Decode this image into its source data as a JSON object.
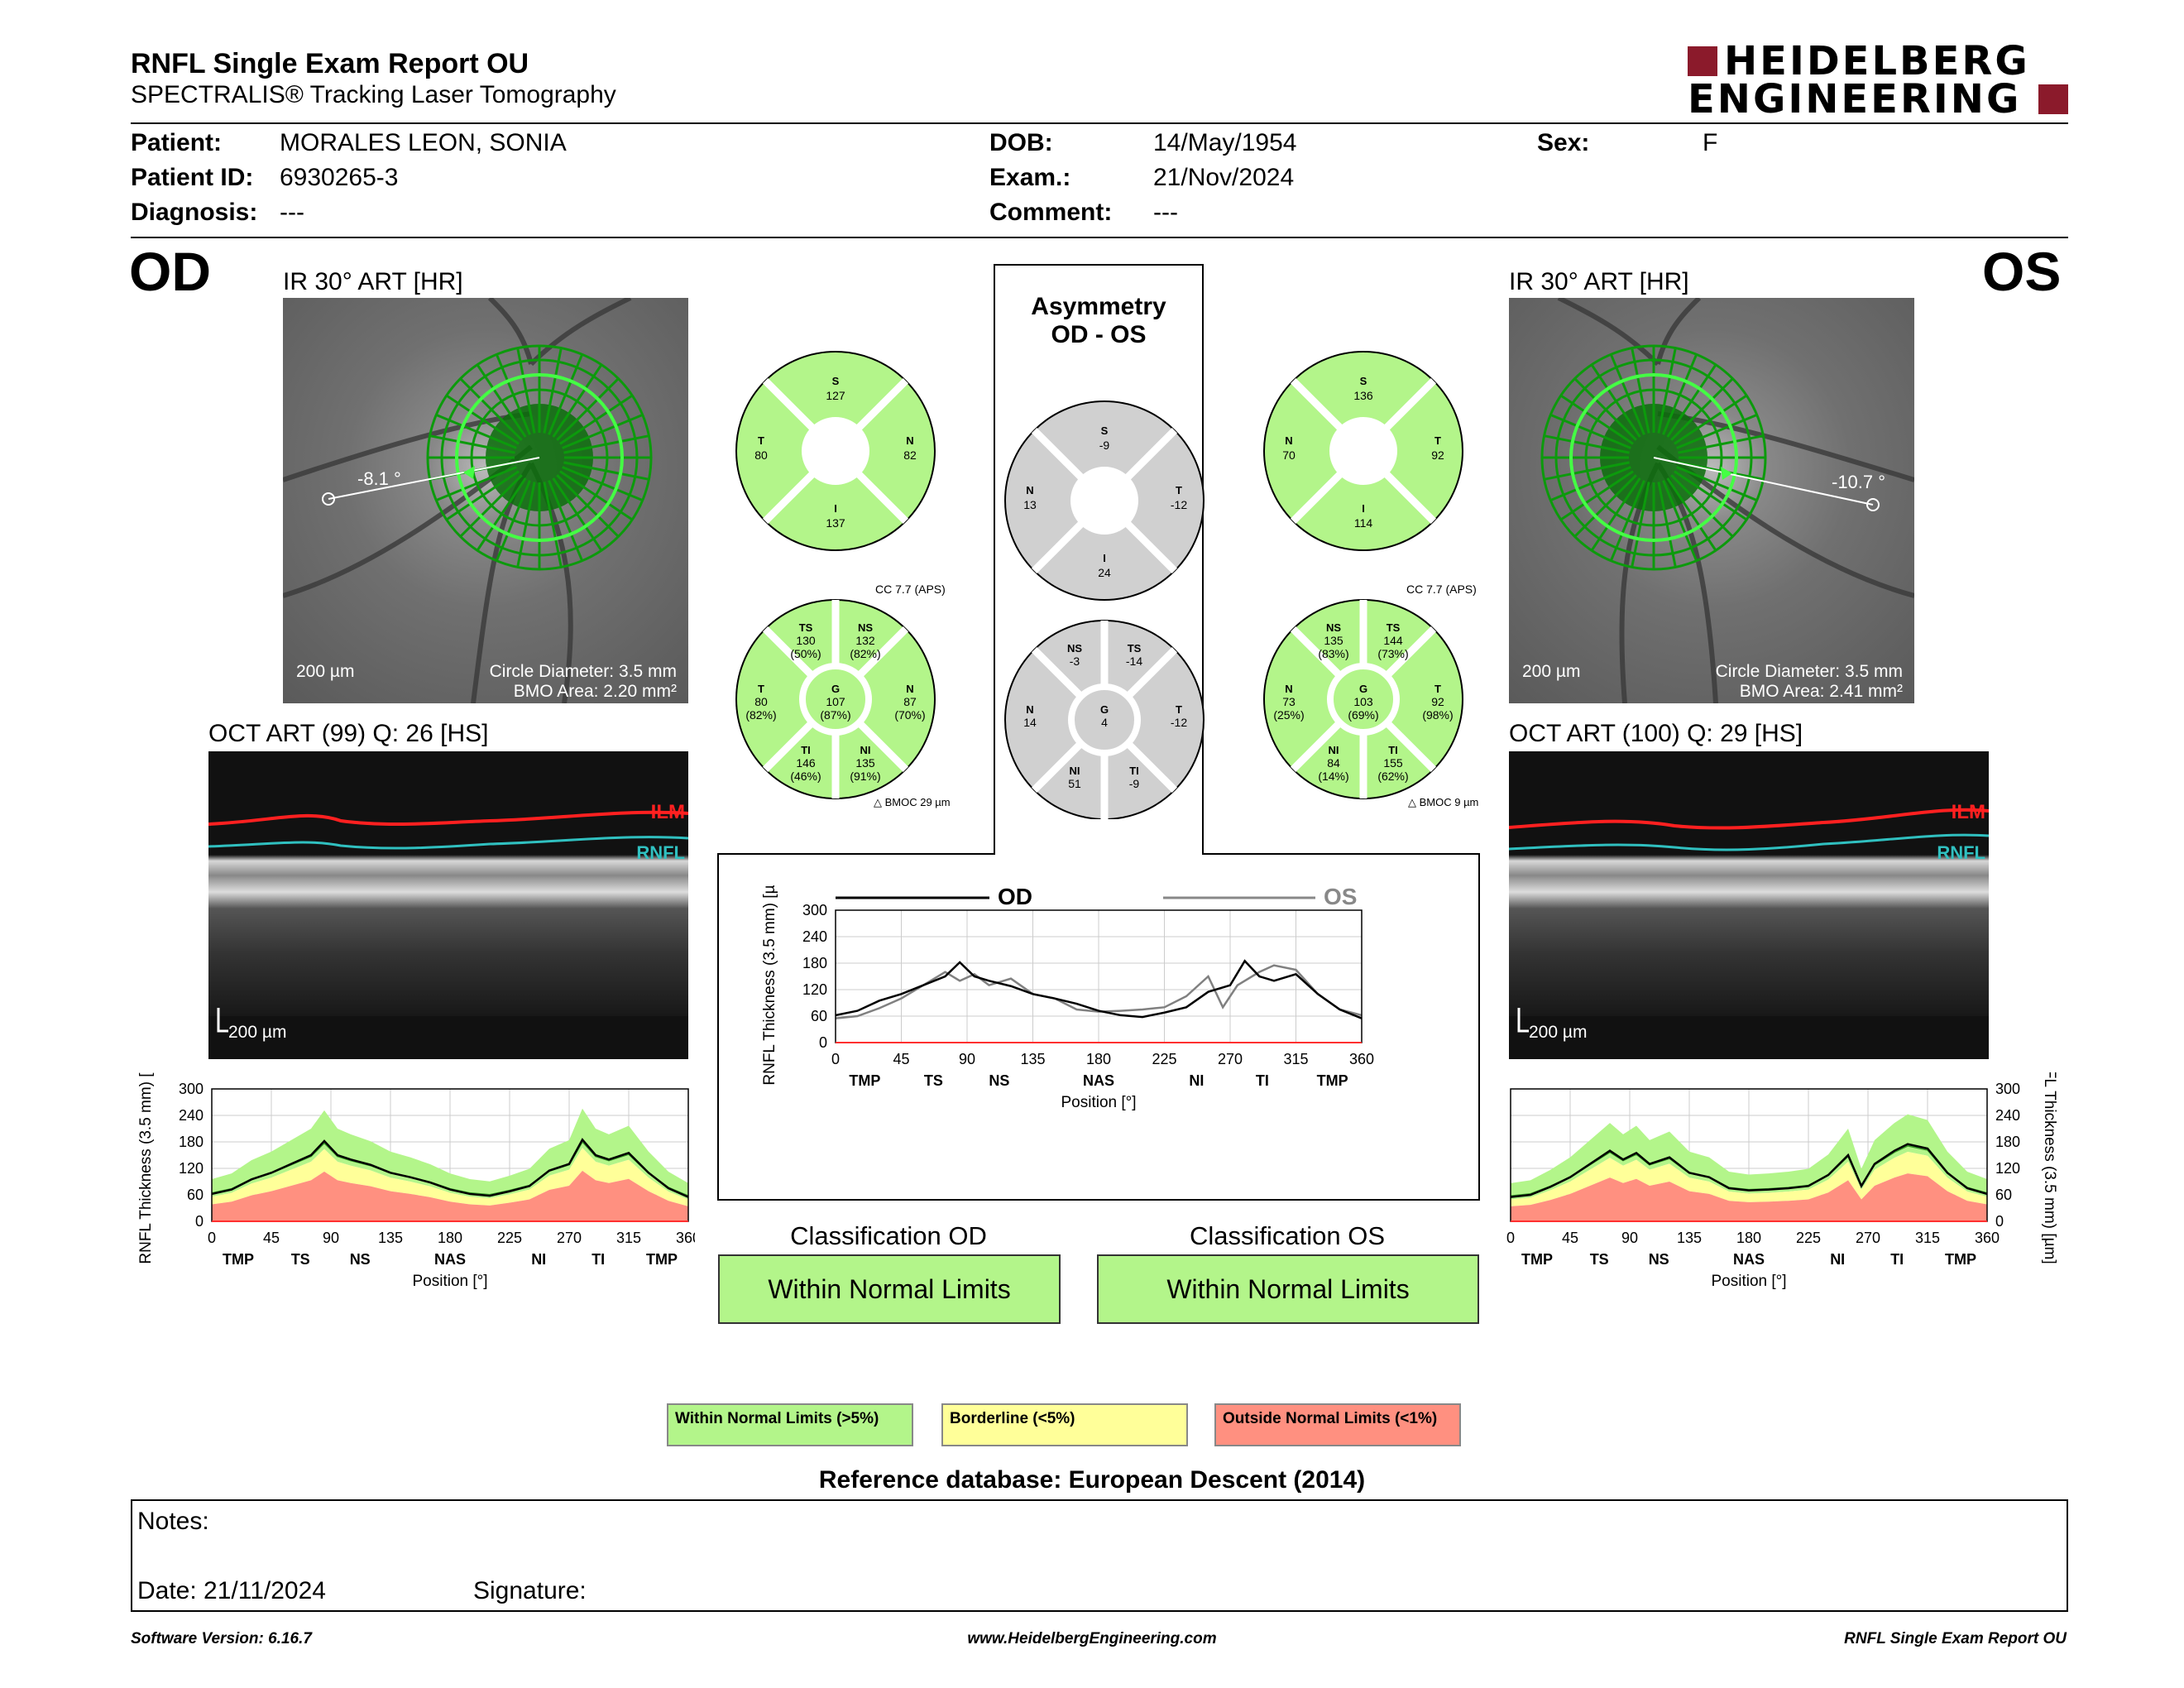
{
  "header": {
    "title": "RNFL Single Exam Report OU",
    "subtitle": "SPECTRALIS® Tracking Laser Tomography",
    "logo_line1": "HEIDELBERG",
    "logo_line2": "ENGINEERING"
  },
  "patient": {
    "patient_label": "Patient:",
    "patient": "MORALES LEON, SONIA",
    "id_label": "Patient ID:",
    "id": "6930265-3",
    "diag_label": "Diagnosis:",
    "diagnosis": "---",
    "dob_label": "DOB:",
    "dob": "14/May/1954",
    "exam_label": "Exam.:",
    "exam": "21/Nov/2024",
    "comment_label": "Comment:",
    "comment": "---",
    "sex_label": "Sex:",
    "sex": "F"
  },
  "od": {
    "eye": "OD",
    "ir_title": "IR 30° ART [HR]",
    "angle": "-8.1 °",
    "scale": "200 µm",
    "circle_diameter": "Circle Diameter: 3.5 mm",
    "bmo_area": "BMO Area: 2.20 mm²",
    "oct_title": "OCT ART (99) Q: 26 [HS]",
    "oct_scale": "200 µm",
    "ilm": "ILM",
    "rnfl": "RNFL",
    "classification_title": "Classification OD",
    "classification": "Within Normal Limits",
    "cc": "CC 7.7 (APS)",
    "bmoc": "BMOC 29 µm",
    "q4": {
      "S": "127",
      "T": "80",
      "N": "82",
      "I": "137"
    },
    "sectors": {
      "TS": [
        "130",
        "(50%)"
      ],
      "NS": [
        "132",
        "(82%)"
      ],
      "T": [
        "80",
        "(82%)"
      ],
      "G": [
        "107",
        "(87%)"
      ],
      "N": [
        "87",
        "(70%)"
      ],
      "TI": [
        "146",
        "(46%)"
      ],
      "NI": [
        "135",
        "(91%)"
      ]
    }
  },
  "os": {
    "eye": "OS",
    "ir_title": "IR 30° ART [HR]",
    "angle": "-10.7 °",
    "scale": "200 µm",
    "circle_diameter": "Circle Diameter: 3.5 mm",
    "bmo_area": "BMO Area: 2.41 mm²",
    "oct_title": "OCT ART (100) Q: 29 [HS]",
    "oct_scale": "200 µm",
    "ilm": "ILM",
    "rnfl": "RNFL",
    "classification_title": "Classification OS",
    "classification": "Within Normal Limits",
    "cc": "CC 7.7 (APS)",
    "bmoc": "BMOC 9 µm",
    "q4": {
      "S": "136",
      "N": "70",
      "T": "92",
      "I": "114"
    },
    "sectors": {
      "NS": [
        "135",
        "(83%)"
      ],
      "TS": [
        "144",
        "(73%)"
      ],
      "N": [
        "73",
        "(25%)"
      ],
      "G": [
        "103",
        "(69%)"
      ],
      "T": [
        "92",
        "(98%)"
      ],
      "NI": [
        "84",
        "(14%)"
      ],
      "TI": [
        "155",
        "(62%)"
      ]
    }
  },
  "asymmetry": {
    "title1": "Asymmetry",
    "title2": "OD - OS",
    "q4": {
      "S": "-9",
      "N": "13",
      "T": "-12",
      "I": "24"
    },
    "sectors": {
      "NS": "-3",
      "TS": "-14",
      "N": "14",
      "G": "4",
      "T": "-12",
      "NI": "51",
      "TI": "-9"
    }
  },
  "compare_legend": {
    "od": "OD",
    "os": "OS"
  },
  "axis": {
    "ylabel": "RNFL Thickness (3.5 mm) [µm]",
    "xlabel": "Position [°]",
    "yticks": [
      "0",
      "60",
      "120",
      "180",
      "240",
      "300"
    ],
    "xticks": [
      "0",
      "45",
      "90",
      "135",
      "180",
      "225",
      "270",
      "315",
      "360"
    ],
    "regions": [
      "TMP",
      "TS",
      "NS",
      "NAS",
      "NI",
      "TI",
      "TMP"
    ]
  },
  "legend": {
    "wnl": "Within Normal Limits (>5%)",
    "border": "Borderline (<5%)",
    "onl": "Outside Normal Limits (<1%)"
  },
  "reference": "Reference database: European Descent (2014)",
  "notes": {
    "label": "Notes:",
    "date": "Date: 21/11/2024",
    "signature": "Signature:"
  },
  "footer": {
    "software": "Software Version: 6.16.7",
    "url": "www.HeidelbergEngineering.com",
    "report": "RNFL Single Exam Report OU"
  },
  "colors": {
    "wnl": "#b3f58a",
    "borderline": "#ffff99",
    "outside": "#ff9080",
    "asym": "#d0d0d0",
    "od_line": "#000000",
    "os_line": "#808080"
  },
  "chart_data": [
    {
      "type": "line",
      "name_ref": "OD profile",
      "xlabel": "Position [°]",
      "ylabel": "RNFL Thickness (3.5 mm) [µm]",
      "xlim": [
        0,
        360
      ],
      "ylim": [
        0,
        300
      ],
      "series": [
        {
          "x": [
            0,
            15,
            30,
            45,
            60,
            75,
            85,
            95,
            105,
            120,
            135,
            150,
            165,
            180,
            195,
            210,
            225,
            240,
            255,
            270,
            280,
            290,
            300,
            315,
            330,
            345,
            360
          ],
          "y": [
            62,
            72,
            95,
            110,
            130,
            150,
            182,
            150,
            140,
            128,
            110,
            100,
            88,
            72,
            62,
            58,
            68,
            80,
            115,
            130,
            185,
            150,
            140,
            155,
            110,
            75,
            55
          ]
        }
      ]
    },
    {
      "type": "line",
      "name_ref": "OS profile",
      "xlabel": "Position [°]",
      "ylabel": "RNFL Thickness (3.5 mm) [µm]",
      "xlim": [
        0,
        360
      ],
      "ylim": [
        0,
        300
      ],
      "series": [
        {
          "x": [
            0,
            15,
            30,
            45,
            60,
            75,
            85,
            95,
            105,
            120,
            135,
            150,
            165,
            180,
            195,
            210,
            225,
            240,
            255,
            265,
            275,
            290,
            300,
            315,
            330,
            345,
            360
          ],
          "y": [
            55,
            60,
            78,
            100,
            130,
            160,
            140,
            155,
            130,
            145,
            110,
            100,
            75,
            70,
            72,
            75,
            80,
            105,
            150,
            80,
            130,
            160,
            175,
            165,
            110,
            75,
            62
          ]
        }
      ]
    },
    {
      "type": "line",
      "name_ref": "OD - OS comparison",
      "xlabel": "Position [°]",
      "ylabel": "RNFL Thickness (3.5 mm) [µm]",
      "xlim": [
        0,
        360
      ],
      "ylim": [
        0,
        300
      ],
      "series": [
        {
          "name": "OD",
          "x": [
            0,
            15,
            30,
            45,
            60,
            75,
            85,
            95,
            105,
            120,
            135,
            150,
            165,
            180,
            195,
            210,
            225,
            240,
            255,
            270,
            280,
            290,
            300,
            315,
            330,
            345,
            360
          ],
          "y": [
            62,
            72,
            95,
            110,
            130,
            150,
            182,
            150,
            140,
            128,
            110,
            100,
            88,
            72,
            62,
            58,
            68,
            80,
            115,
            130,
            185,
            150,
            140,
            155,
            110,
            75,
            55
          ]
        },
        {
          "name": "OS",
          "x": [
            0,
            15,
            30,
            45,
            60,
            75,
            85,
            95,
            105,
            120,
            135,
            150,
            165,
            180,
            195,
            210,
            225,
            240,
            255,
            265,
            275,
            290,
            300,
            315,
            330,
            345,
            360
          ],
          "y": [
            55,
            60,
            78,
            100,
            130,
            160,
            140,
            155,
            130,
            145,
            110,
            100,
            75,
            70,
            72,
            75,
            80,
            105,
            150,
            80,
            130,
            160,
            175,
            165,
            110,
            75,
            62
          ]
        }
      ]
    }
  ]
}
